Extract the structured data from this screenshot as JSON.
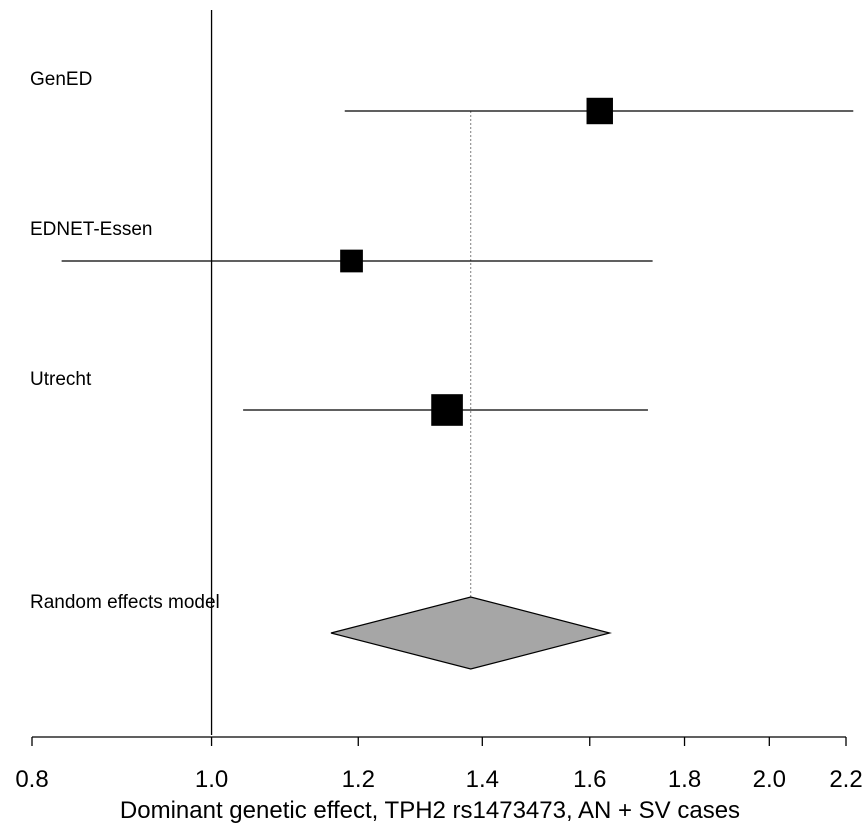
{
  "chart_data": {
    "type": "forest",
    "xlabel": "Dominant genetic effect, TPH2 rs1473473, AN + SV cases",
    "x_scale": "log",
    "xlim": [
      0.8,
      2.2
    ],
    "x_ticks": [
      0.8,
      1.0,
      1.2,
      1.4,
      1.6,
      1.8,
      2.0,
      2.2
    ],
    "x_tick_labels": [
      "0.8",
      "1.0",
      "1.2",
      "1.4",
      "1.6",
      "1.8",
      "2.0",
      "2.2"
    ],
    "null_line": 1.0,
    "studies": [
      {
        "name": "GenED",
        "estimate": 1.62,
        "lower": 1.18,
        "upper": 2.22,
        "weight": 0.3
      },
      {
        "name": "EDNET-Essen",
        "estimate": 1.19,
        "lower": 0.83,
        "upper": 1.73,
        "weight": 0.18
      },
      {
        "name": "Utrecht",
        "estimate": 1.34,
        "lower": 1.04,
        "upper": 1.72,
        "weight": 0.52
      }
    ],
    "summary": {
      "name": "Random effects model",
      "estimate": 1.38,
      "lower": 1.16,
      "upper": 1.64
    }
  },
  "colors": {
    "line": "#000000",
    "square": "#000000",
    "diamond": "#a6a6a6",
    "reference": "#808080"
  }
}
